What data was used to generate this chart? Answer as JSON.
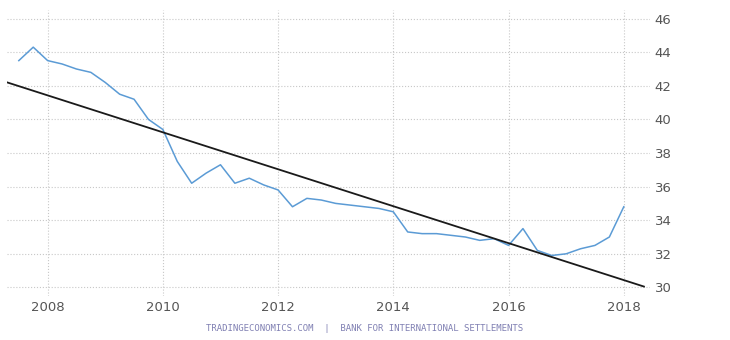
{
  "x_values": [
    2007.5,
    2007.75,
    2008.0,
    2008.25,
    2008.5,
    2008.75,
    2009.0,
    2009.25,
    2009.5,
    2009.75,
    2010.0,
    2010.25,
    2010.5,
    2010.75,
    2011.0,
    2011.25,
    2011.5,
    2011.75,
    2012.0,
    2012.25,
    2012.5,
    2012.75,
    2013.0,
    2013.25,
    2013.5,
    2013.75,
    2014.0,
    2014.25,
    2014.5,
    2014.75,
    2015.0,
    2015.25,
    2015.5,
    2015.75,
    2016.0,
    2016.25,
    2016.5,
    2016.75,
    2017.0,
    2017.25,
    2017.5,
    2017.75,
    2018.0
  ],
  "y_values": [
    43.5,
    44.3,
    43.5,
    43.3,
    43.0,
    42.8,
    42.2,
    41.5,
    41.2,
    40.0,
    39.4,
    37.5,
    36.2,
    36.8,
    37.3,
    36.2,
    36.5,
    36.1,
    35.8,
    34.8,
    35.3,
    35.2,
    35.0,
    34.9,
    34.8,
    34.7,
    34.5,
    33.3,
    33.2,
    33.2,
    33.1,
    33.0,
    32.8,
    32.9,
    32.5,
    33.5,
    32.2,
    31.9,
    32.0,
    32.3,
    32.5,
    33.0,
    34.8
  ],
  "trend_x": [
    2007.3,
    2018.35
  ],
  "trend_y": [
    42.2,
    30.05
  ],
  "xlim": [
    2007.3,
    2018.45
  ],
  "ylim": [
    29.5,
    46.5
  ],
  "yticks": [
    30,
    32,
    34,
    36,
    38,
    40,
    42,
    44,
    46
  ],
  "xticks": [
    2008,
    2010,
    2012,
    2014,
    2016,
    2018
  ],
  "line_color": "#5b9bd5",
  "trend_color": "#1a1a1a",
  "grid_color": "#c8c8c8",
  "bg_color": "#ffffff",
  "watermark": "TRADINGECONOMICS.COM  |  BANK FOR INTERNATIONAL SETTLEMENTS",
  "watermark_color_r": 0.5,
  "watermark_color_g": 0.5,
  "watermark_color_b": 0.7,
  "watermark_fontsize": 6.5,
  "tick_fontsize": 9.5,
  "tick_color": "#555555"
}
